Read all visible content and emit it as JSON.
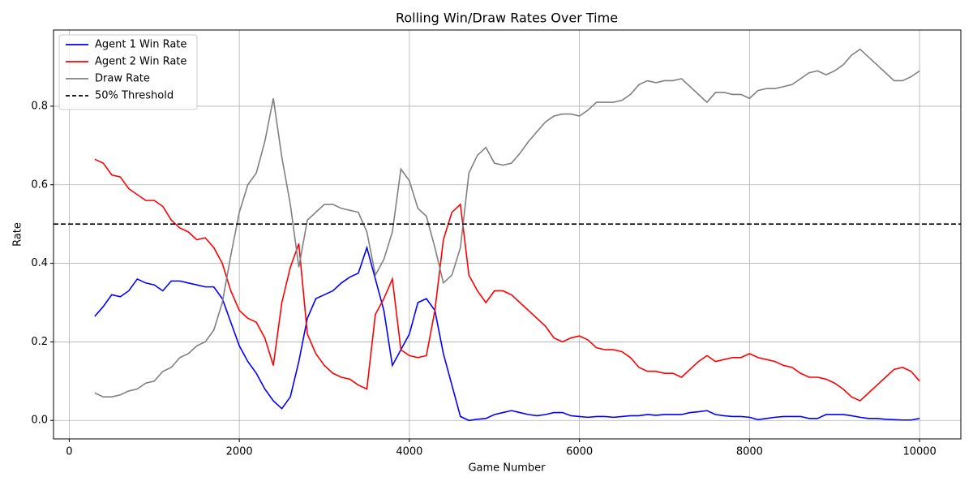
{
  "chart_data": {
    "type": "line",
    "title": "Rolling Win/Draw Rates Over Time",
    "x_label": "Game Number",
    "y_label": "Rate",
    "x": [
      300,
      400,
      500,
      600,
      700,
      800,
      900,
      1000,
      1100,
      1200,
      1300,
      1400,
      1500,
      1600,
      1700,
      1800,
      1900,
      2000,
      2100,
      2200,
      2300,
      2400,
      2500,
      2600,
      2700,
      2800,
      2900,
      3000,
      3100,
      3200,
      3300,
      3400,
      3500,
      3600,
      3700,
      3800,
      3900,
      4000,
      4100,
      4200,
      4300,
      4400,
      4500,
      4600,
      4700,
      4800,
      4900,
      5000,
      5100,
      5200,
      5300,
      5400,
      5500,
      5600,
      5700,
      5800,
      5900,
      6000,
      6100,
      6200,
      6300,
      6400,
      6500,
      6600,
      6700,
      6800,
      6900,
      7000,
      7100,
      7200,
      7300,
      7400,
      7500,
      7600,
      7700,
      7800,
      7900,
      8000,
      8100,
      8200,
      8300,
      8400,
      8500,
      8600,
      8700,
      8800,
      8900,
      9000,
      9100,
      9200,
      9300,
      9400,
      9500,
      9600,
      9700,
      9800,
      9900,
      10000
    ],
    "series": [
      {
        "name": "Agent 1 Win Rate",
        "color": "#0000ff",
        "values": [
          0.265,
          0.29,
          0.32,
          0.315,
          0.33,
          0.36,
          0.35,
          0.345,
          0.33,
          0.355,
          0.355,
          0.35,
          0.345,
          0.34,
          0.34,
          0.31,
          0.25,
          0.19,
          0.15,
          0.12,
          0.08,
          0.05,
          0.03,
          0.06,
          0.15,
          0.26,
          0.31,
          0.32,
          0.33,
          0.35,
          0.365,
          0.375,
          0.44,
          0.36,
          0.28,
          0.14,
          0.18,
          0.22,
          0.3,
          0.31,
          0.28,
          0.17,
          0.09,
          0.01,
          0.0,
          0.003,
          0.005,
          0.015,
          0.02,
          0.025,
          0.02,
          0.015,
          0.012,
          0.015,
          0.02,
          0.02,
          0.012,
          0.01,
          0.008,
          0.01,
          0.01,
          0.008,
          0.01,
          0.012,
          0.012,
          0.015,
          0.013,
          0.015,
          0.015,
          0.015,
          0.02,
          0.022,
          0.025,
          0.015,
          0.012,
          0.01,
          0.01,
          0.008,
          0.002,
          0.005,
          0.008,
          0.01,
          0.01,
          0.01,
          0.005,
          0.005,
          0.015,
          0.015,
          0.015,
          0.012,
          0.008,
          0.005,
          0.005,
          0.003,
          0.002,
          0.001,
          0.001,
          0.005
        ]
      },
      {
        "name": "Agent 2 Win Rate",
        "color": "#ff0000",
        "values": [
          0.665,
          0.655,
          0.625,
          0.62,
          0.59,
          0.575,
          0.56,
          0.56,
          0.545,
          0.51,
          0.49,
          0.48,
          0.46,
          0.465,
          0.44,
          0.4,
          0.33,
          0.28,
          0.26,
          0.25,
          0.21,
          0.14,
          0.3,
          0.39,
          0.45,
          0.22,
          0.17,
          0.14,
          0.12,
          0.11,
          0.105,
          0.09,
          0.08,
          0.27,
          0.31,
          0.36,
          0.18,
          0.165,
          0.16,
          0.165,
          0.28,
          0.46,
          0.53,
          0.55,
          0.37,
          0.33,
          0.3,
          0.33,
          0.33,
          0.32,
          0.3,
          0.28,
          0.26,
          0.24,
          0.21,
          0.2,
          0.21,
          0.215,
          0.205,
          0.185,
          0.18,
          0.18,
          0.175,
          0.16,
          0.135,
          0.125,
          0.125,
          0.12,
          0.12,
          0.11,
          0.13,
          0.15,
          0.165,
          0.15,
          0.155,
          0.16,
          0.16,
          0.17,
          0.16,
          0.155,
          0.15,
          0.14,
          0.135,
          0.12,
          0.11,
          0.11,
          0.105,
          0.095,
          0.08,
          0.06,
          0.05,
          0.07,
          0.09,
          0.11,
          0.13,
          0.135,
          0.125,
          0.1
        ]
      },
      {
        "name": "Draw Rate",
        "color": "#808080",
        "values": [
          0.07,
          0.06,
          0.06,
          0.065,
          0.075,
          0.08,
          0.095,
          0.1,
          0.125,
          0.135,
          0.16,
          0.17,
          0.19,
          0.2,
          0.23,
          0.3,
          0.42,
          0.53,
          0.6,
          0.63,
          0.71,
          0.82,
          0.67,
          0.55,
          0.39,
          0.51,
          0.53,
          0.55,
          0.55,
          0.54,
          0.535,
          0.53,
          0.48,
          0.37,
          0.41,
          0.48,
          0.64,
          0.61,
          0.54,
          0.52,
          0.44,
          0.35,
          0.37,
          0.44,
          0.63,
          0.675,
          0.695,
          0.655,
          0.65,
          0.655,
          0.68,
          0.71,
          0.735,
          0.76,
          0.775,
          0.78,
          0.78,
          0.775,
          0.79,
          0.81,
          0.81,
          0.81,
          0.815,
          0.83,
          0.855,
          0.865,
          0.86,
          0.865,
          0.865,
          0.87,
          0.85,
          0.83,
          0.81,
          0.835,
          0.835,
          0.83,
          0.83,
          0.82,
          0.84,
          0.845,
          0.845,
          0.85,
          0.855,
          0.87,
          0.885,
          0.89,
          0.88,
          0.89,
          0.905,
          0.93,
          0.945,
          0.925,
          0.905,
          0.885,
          0.865,
          0.865,
          0.875,
          0.89
        ]
      }
    ],
    "threshold": {
      "name": "50% Threshold",
      "value": 0.5,
      "color": "#000000"
    },
    "xlim": [
      -185,
      10485
    ],
    "ylim": [
      -0.047,
      0.994
    ],
    "xticks": [
      0,
      2000,
      4000,
      6000,
      8000,
      10000
    ],
    "yticks": [
      {
        "value": 0,
        "label": "0.0"
      },
      {
        "value": 0.2,
        "label": "0.2"
      },
      {
        "value": 0.4,
        "label": "0.4"
      },
      {
        "value": 0.6,
        "label": "0.6"
      },
      {
        "value": 0.8,
        "label": "0.8"
      }
    ],
    "grid": true,
    "legend": "upper left"
  }
}
